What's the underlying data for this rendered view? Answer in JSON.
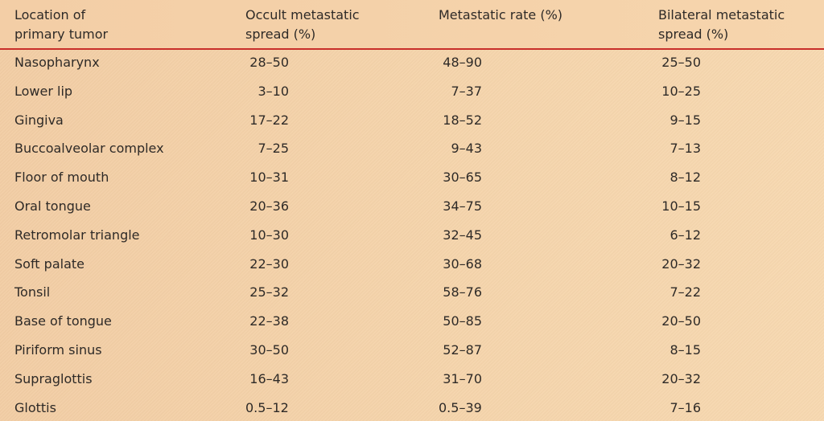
{
  "table": {
    "headers": [
      [
        "Location of",
        "primary tumor"
      ],
      [
        "Occult metastatic",
        "spread (%)"
      ],
      [
        "Metastatic rate (%)"
      ],
      [
        "Bilateral metastatic",
        "spread (%)"
      ]
    ],
    "rows": [
      [
        "Nasopharynx",
        "28–50",
        "48–90",
        "25–50"
      ],
      [
        "Lower lip",
        "3–10",
        "7–37",
        "10–25"
      ],
      [
        "Gingiva",
        "17–22",
        "18–52",
        "9–15"
      ],
      [
        "Buccoalveolar complex",
        "7–25",
        "9–43",
        "7–13"
      ],
      [
        "Floor of mouth",
        "10–31",
        "30–65",
        "8–12"
      ],
      [
        "Oral tongue",
        "20–36",
        "34–75",
        "10–15"
      ],
      [
        "Retromolar triangle",
        "10–30",
        "32–45",
        "6–12"
      ],
      [
        "Soft palate",
        "22–30",
        "30–68",
        "20–32"
      ],
      [
        "Tonsil",
        "25–32",
        "58–76",
        "7–22"
      ],
      [
        "Base of tongue",
        "22–38",
        "50–85",
        "20–50"
      ],
      [
        "Piriform sinus",
        "30–50",
        "52–87",
        "8–15"
      ],
      [
        "Supraglottis",
        "16–43",
        "31–70",
        "20–32"
      ],
      [
        "Glottis",
        "0.5–12",
        "0.5–39",
        "7–16"
      ]
    ]
  },
  "colors": {
    "rule": "#c92f2a",
    "background": "#f5d3a9",
    "text": "#2e2a27"
  }
}
